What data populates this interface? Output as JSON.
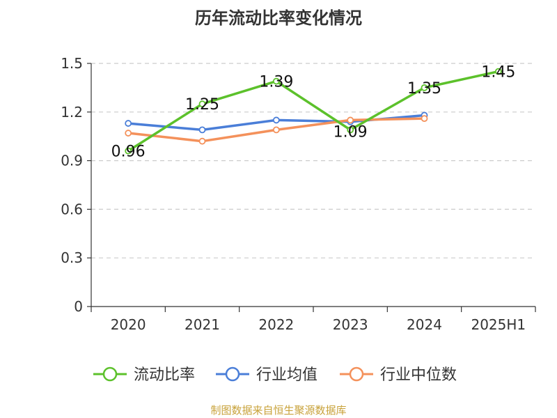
{
  "title": "历年流动比率变化情况",
  "source": "制图数据来自恒生聚源数据库",
  "chart_data": {
    "type": "line",
    "title": "历年流动比率变化情况",
    "xlabel": "",
    "ylabel": "",
    "categories": [
      "2020",
      "2021",
      "2022",
      "2023",
      "2024",
      "2025H1"
    ],
    "ylim": [
      0,
      1.5
    ],
    "yticks": [
      "0",
      "0.3",
      "0.6",
      "0.9",
      "1.2",
      "1.5"
    ],
    "grid": true,
    "legend_position": "bottom",
    "series": [
      {
        "name": "流动比率",
        "color": "#5cc12b",
        "values": [
          0.96,
          1.25,
          1.39,
          1.09,
          1.35,
          1.45
        ],
        "labels": [
          "0.96",
          "1.25",
          "1.39",
          "1.09",
          "1.35",
          "1.45"
        ]
      },
      {
        "name": "行业均值",
        "color": "#4a7ed8",
        "values": [
          1.13,
          1.09,
          1.15,
          1.14,
          1.18,
          null
        ]
      },
      {
        "name": "行业中位数",
        "color": "#f4915b",
        "values": [
          1.07,
          1.02,
          1.09,
          1.15,
          1.16,
          null
        ]
      }
    ]
  }
}
